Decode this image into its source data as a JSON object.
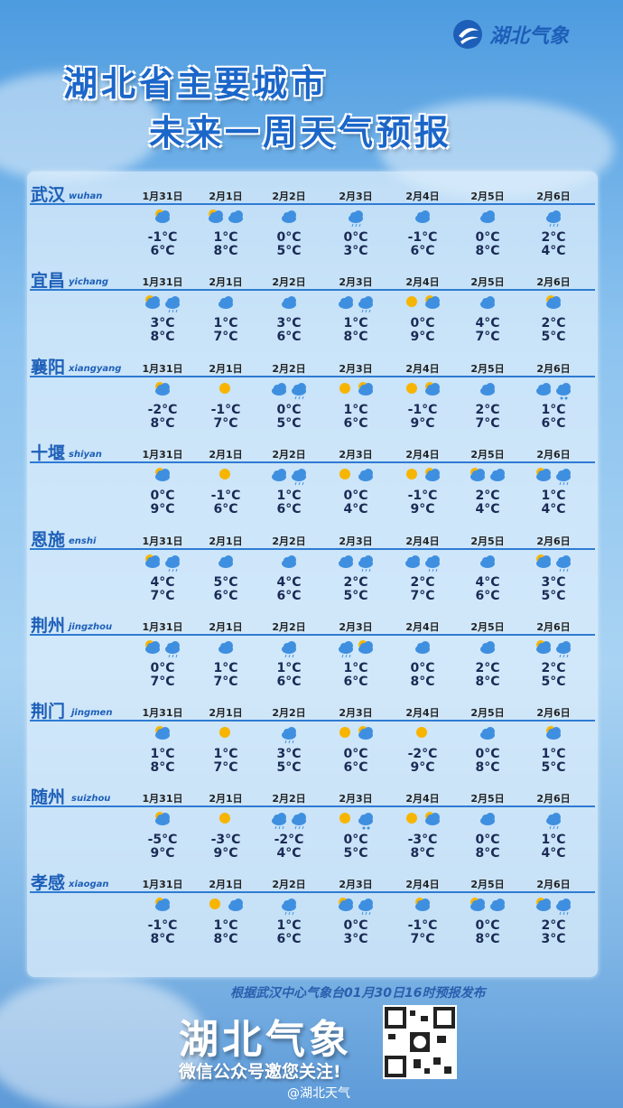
{
  "header": {
    "logo": "湖北气象",
    "title_line1": "湖北省主要城市",
    "title_line2": "未来一周天气预报"
  },
  "dates": [
    "1月31日",
    "2月1日",
    "2月2日",
    "2月3日",
    "2月4日",
    "2月5日",
    "2月6日"
  ],
  "cities": [
    {
      "name": "武汉",
      "pinyin": "wuhan",
      "low": [
        "-1°C",
        "1°C",
        "0°C",
        "0°C",
        "-1°C",
        "0°C",
        "2°C"
      ],
      "high": [
        "6°C",
        "8°C",
        "5°C",
        "3°C",
        "6°C",
        "8°C",
        "4°C"
      ]
    },
    {
      "name": "宜昌",
      "pinyin": "yichang",
      "low": [
        "3°C",
        "1°C",
        "3°C",
        "1°C",
        "0°C",
        "4°C",
        "2°C"
      ],
      "high": [
        "8°C",
        "7°C",
        "6°C",
        "8°C",
        "9°C",
        "7°C",
        "5°C"
      ]
    },
    {
      "name": "襄阳",
      "pinyin": "xiangyang",
      "low": [
        "-2°C",
        "-1°C",
        "0°C",
        "1°C",
        "-1°C",
        "2°C",
        "1°C"
      ],
      "high": [
        "8°C",
        "7°C",
        "5°C",
        "6°C",
        "9°C",
        "7°C",
        "6°C"
      ]
    },
    {
      "name": "十堰",
      "pinyin": "shiyan",
      "low": [
        "0°C",
        "-1°C",
        "1°C",
        "0°C",
        "-1°C",
        "2°C",
        "1°C"
      ],
      "high": [
        "9°C",
        "6°C",
        "6°C",
        "4°C",
        "9°C",
        "4°C",
        "4°C"
      ]
    },
    {
      "name": "恩施",
      "pinyin": "enshi",
      "low": [
        "4°C",
        "5°C",
        "4°C",
        "2°C",
        "2°C",
        "4°C",
        "3°C"
      ],
      "high": [
        "7°C",
        "6°C",
        "6°C",
        "5°C",
        "7°C",
        "6°C",
        "5°C"
      ]
    },
    {
      "name": "荆州",
      "pinyin": "jingzhou",
      "low": [
        "0°C",
        "1°C",
        "1°C",
        "1°C",
        "0°C",
        "2°C",
        "2°C"
      ],
      "high": [
        "7°C",
        "7°C",
        "6°C",
        "6°C",
        "8°C",
        "8°C",
        "5°C"
      ]
    },
    {
      "name": "荆门",
      "pinyin": "jingmen",
      "low": [
        "1°C",
        "1°C",
        "3°C",
        "0°C",
        "-2°C",
        "0°C",
        "1°C"
      ],
      "high": [
        "8°C",
        "7°C",
        "5°C",
        "6°C",
        "9°C",
        "8°C",
        "5°C"
      ]
    },
    {
      "name": "随州",
      "pinyin": "suizhou",
      "low": [
        "-5°C",
        "-3°C",
        "-2°C",
        "0°C",
        "-3°C",
        "0°C",
        "1°C"
      ],
      "high": [
        "9°C",
        "9°C",
        "4°C",
        "5°C",
        "8°C",
        "8°C",
        "4°C"
      ]
    },
    {
      "name": "孝感",
      "pinyin": "xiaogan",
      "low": [
        "-1°C",
        "1°C",
        "1°C",
        "0°C",
        "-1°C",
        "0°C",
        "2°C"
      ],
      "high": [
        "8°C",
        "8°C",
        "6°C",
        "3°C",
        "7°C",
        "8°C",
        "3°C"
      ]
    }
  ],
  "footer": {
    "note": "根据武汉中心气象台01月30日16时预报发布",
    "brand": "湖北气象",
    "invite": "微信公众号邀您关注!",
    "watermark": "@湖北天气"
  }
}
